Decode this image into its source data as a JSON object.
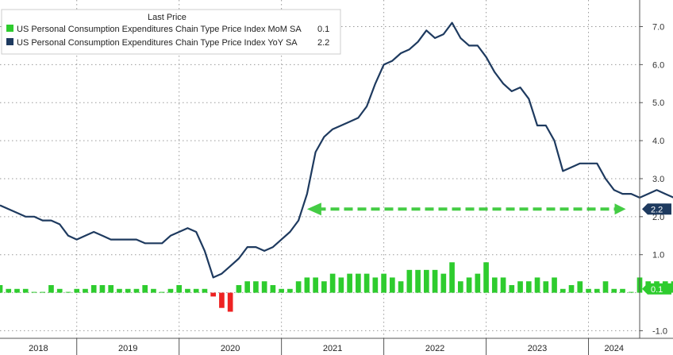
{
  "chart_data": {
    "type": "bar+line",
    "legend": {
      "title": "Last Price",
      "placement": "top-left",
      "entries": [
        {
          "label": "US Personal Consumption Expenditures Chain Type Price Index MoM SA",
          "value": "0.1",
          "color": "#2ecc2e",
          "marker": "bar"
        },
        {
          "label": "US Personal Consumption Expenditures Chain Type Price Index YoY SA",
          "value": "2.2",
          "color": "#1e3a5f",
          "marker": "line"
        }
      ]
    },
    "y_axis": {
      "position": "right",
      "range": [
        -1.2,
        7.7
      ],
      "ticks": [
        "-1.0",
        "0.1",
        "1.0",
        "2.0",
        "2.2",
        "3.0",
        "4.0",
        "5.0",
        "6.0",
        "7.0"
      ],
      "tick_values": [
        -1,
        0.1,
        1,
        2,
        2.2,
        3,
        4,
        5,
        6,
        7
      ],
      "grid_values": [
        -1,
        0,
        1,
        2,
        3,
        4,
        5,
        6,
        7
      ],
      "last_value_labels": [
        {
          "text": "2.2",
          "value": 2.2,
          "bg": "#1e3a5f"
        },
        {
          "text": "0.1",
          "value": 0.1,
          "bg": "#2ecc2e"
        }
      ]
    },
    "x_axis": {
      "start": "2018-04",
      "end": "2024-07",
      "years": [
        "2018",
        "2019",
        "2020",
        "2021",
        "2022",
        "2023",
        "2024"
      ]
    },
    "grid": true,
    "series": [
      {
        "name": "US Personal Consumption Expenditures Chain Type Price Index YoY SA",
        "type": "line",
        "color": "#1e3a5f",
        "start": "2018-04",
        "values": [
          2.3,
          2.2,
          2.1,
          2.0,
          2.0,
          1.9,
          1.9,
          1.8,
          1.5,
          1.4,
          1.5,
          1.6,
          1.5,
          1.4,
          1.4,
          1.4,
          1.4,
          1.3,
          1.3,
          1.3,
          1.5,
          1.6,
          1.7,
          1.6,
          1.1,
          0.4,
          0.5,
          0.7,
          0.9,
          1.2,
          1.2,
          1.1,
          1.2,
          1.4,
          1.6,
          1.9,
          2.6,
          3.7,
          4.1,
          4.3,
          4.4,
          4.5,
          4.6,
          4.9,
          5.5,
          6.0,
          6.1,
          6.3,
          6.4,
          6.6,
          6.9,
          6.7,
          6.8,
          7.1,
          6.7,
          6.5,
          6.5,
          6.2,
          5.8,
          5.5,
          5.3,
          5.4,
          5.1,
          4.4,
          4.4,
          4.0,
          3.2,
          3.3,
          3.4,
          3.4,
          3.4,
          3.0,
          2.7,
          2.6,
          2.6,
          2.5,
          2.6,
          2.7,
          2.6,
          2.5,
          2.5,
          2.4,
          2.2
        ]
      },
      {
        "name": "US Personal Consumption Expenditures Chain Type Price Index MoM SA",
        "type": "bar",
        "color": "#2ecc2e",
        "negative_color": "#ee2222",
        "start": "2018-04",
        "values": [
          0.2,
          0.1,
          0.1,
          0.1,
          0.0,
          0.0,
          0.2,
          0.1,
          0.0,
          0.1,
          0.1,
          0.2,
          0.2,
          0.2,
          0.1,
          0.1,
          0.1,
          0.2,
          0.1,
          0.0,
          0.1,
          0.2,
          0.1,
          0.1,
          0.1,
          -0.1,
          -0.4,
          -0.5,
          0.2,
          0.3,
          0.3,
          0.3,
          0.2,
          0.1,
          0.1,
          0.3,
          0.4,
          0.4,
          0.3,
          0.5,
          0.4,
          0.5,
          0.5,
          0.5,
          0.4,
          0.5,
          0.4,
          0.3,
          0.6,
          0.6,
          0.6,
          0.6,
          0.5,
          0.8,
          0.3,
          0.4,
          0.5,
          0.8,
          0.4,
          0.4,
          0.2,
          0.3,
          0.3,
          0.4,
          0.3,
          0.4,
          0.1,
          0.2,
          0.3,
          0.1,
          0.1,
          0.3,
          0.1,
          0.1,
          0.0,
          0.4,
          0.3,
          0.3,
          0.3,
          0.3,
          0.0,
          0.0,
          0.1
        ]
      }
    ],
    "annotation": {
      "type": "dashed-arrow",
      "color": "#44cc44",
      "value": 2.2,
      "from": "2024-05",
      "to": "2021-04",
      "direction": "left"
    }
  }
}
